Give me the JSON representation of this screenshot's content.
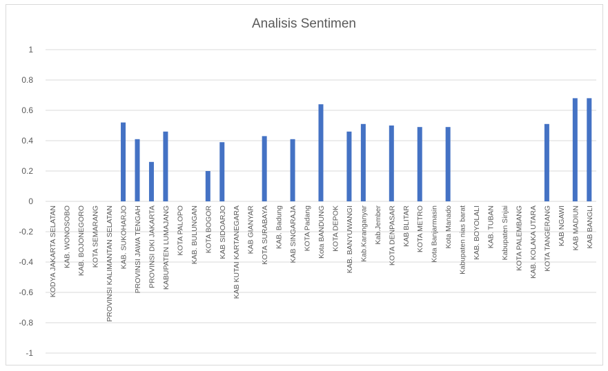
{
  "chart_data": {
    "type": "bar",
    "title": "Analisis Sentimen",
    "xlabel": "",
    "ylabel": "",
    "ylim": [
      -1,
      1
    ],
    "yticks": [
      1,
      0.8,
      0.6,
      0.4,
      0.2,
      0,
      -0.2,
      -0.4,
      -0.6,
      -0.8,
      -1
    ],
    "grid": true,
    "legend": "none",
    "bar_color": "#4472c4",
    "grid_color": "#d9d9d9",
    "categories": [
      "KODYA JAKARTA SELATAN",
      "KAB. WONOSOBO",
      "KAB. BOJONEGORO",
      "KOTA SEMARANG",
      "PROVINSI KALIMANTAN SELATAN",
      "KAB. SUKOHARJO",
      "PROVINSI JAWA TENGAH",
      "PROVINSI DKI JAKARTA",
      "KABUPATEN LUMAJANG",
      "KOTA PALOPO",
      "KAB. BULUNGAN",
      "KOTA BOGOR",
      "KAB SIDOARJO",
      "KAB KUTAI KARTANEGARA",
      "KAB GIANYAR",
      "KOTA SURABAYA",
      "KAB. Badung",
      "KAB SINGARAJA",
      "KOTA Padang",
      "Kota BANDUNG",
      "KOTA DEPOK",
      "KAB. BANYUWANGI",
      "Kab.Karanganyar",
      "Kab.Jember",
      "KOTA DENPASAR",
      "KAB BLITAR",
      "KOTA METRO",
      "Kota Banjarmasin",
      "Kota Manado",
      "Kabupaten nias barat",
      "KAB. BOYOLALI",
      "KAB. TUBAN",
      "Kabupaten Sinjai",
      "KOTA PALEMBANG",
      "KAB. KOLAKA UTARA",
      "KOTA TANGERANG",
      "KAB NGAWI",
      "KAB MADIUN",
      "KAB BANGLI"
    ],
    "values": [
      0,
      0,
      0,
      0,
      0,
      0.52,
      0.41,
      0.26,
      0.46,
      0,
      0,
      0.2,
      0.39,
      0,
      0,
      0.43,
      0,
      0.41,
      0,
      0.64,
      0,
      0.46,
      0.51,
      0,
      0.5,
      0,
      0.49,
      0,
      0.49,
      0,
      0,
      0,
      0,
      0,
      0,
      0.51,
      0,
      0.68,
      0.68
    ]
  }
}
